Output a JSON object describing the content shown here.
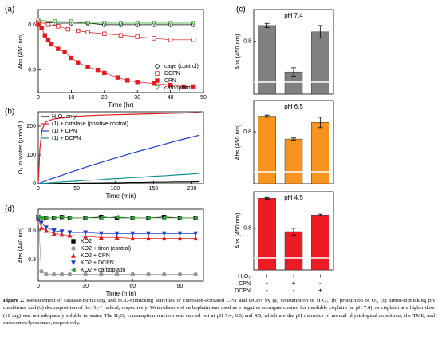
{
  "chart_data": [
    {
      "panel": "(a)",
      "type": "line",
      "lines": true,
      "xlabel": "Time (hr)",
      "ylabel": "Abs (450 nm)",
      "xlim": [
        0,
        50
      ],
      "xticks": [
        0,
        10,
        20,
        30,
        40,
        50
      ],
      "ylim": [
        0.15,
        0.7
      ],
      "yticks": [
        0.3,
        0.6
      ],
      "legend": "lower right",
      "series": [
        {
          "name": "cage (control)",
          "color": "#000000",
          "marker": "circle-open",
          "x": [
            0,
            5,
            10,
            15,
            20,
            25,
            30,
            35,
            40,
            47
          ],
          "values": [
            0.62,
            0.61,
            0.61,
            0.61,
            0.6,
            0.6,
            0.6,
            0.6,
            0.6,
            0.6
          ]
        },
        {
          "name": "DCPN",
          "color": "#e41a1c",
          "marker": "square-open",
          "x": [
            0,
            3,
            6,
            9,
            12,
            15,
            20,
            25,
            30,
            35,
            40,
            47
          ],
          "values": [
            0.62,
            0.6,
            0.59,
            0.57,
            0.56,
            0.55,
            0.54,
            0.53,
            0.52,
            0.51,
            0.5,
            0.5
          ]
        },
        {
          "name": "CPN",
          "color": "#e41a1c",
          "marker": "square",
          "x": [
            0,
            1,
            2,
            3,
            4,
            6,
            8,
            10,
            12,
            15,
            18,
            20,
            24,
            27,
            30,
            35,
            40,
            44,
            47
          ],
          "values": [
            0.6,
            0.58,
            0.53,
            0.5,
            0.47,
            0.44,
            0.42,
            0.38,
            0.35,
            0.32,
            0.3,
            0.28,
            0.25,
            0.23,
            0.22,
            0.21,
            0.2,
            0.19,
            0.19
          ]
        },
        {
          "name": "carboplatin",
          "color": "#2ca02c",
          "marker": "triangle-down-open",
          "x": [
            0,
            5,
            10,
            15,
            20,
            25,
            30,
            35,
            40,
            47
          ],
          "values": [
            0.63,
            0.62,
            0.62,
            0.61,
            0.61,
            0.61,
            0.61,
            0.61,
            0.61,
            0.61
          ]
        }
      ]
    },
    {
      "panel": "(b)",
      "type": "line",
      "lines": true,
      "xlabel": "Time (min)",
      "ylabel": "O₂ in water (μmol/L)",
      "xlim": [
        0,
        215
      ],
      "xticks": [
        0,
        50,
        100,
        150,
        200
      ],
      "ylim": [
        0,
        250
      ],
      "yticks": [
        0,
        100,
        200
      ],
      "legend": "upper left",
      "series": [
        {
          "name": "H₂O₂ only",
          "color": "#000000",
          "x": [
            0,
            15,
            30,
            45,
            60,
            75,
            90,
            105,
            120,
            135,
            150,
            165,
            180,
            195,
            210
          ],
          "values": [
            0,
            0,
            1,
            1,
            2,
            2,
            3,
            3,
            4,
            4,
            5,
            5,
            6,
            6,
            7
          ]
        },
        {
          "name": "(1) + catalase (positive control)",
          "color": "#e41a1c",
          "x": [
            0,
            2,
            5,
            10,
            20,
            40,
            60,
            90,
            120,
            150,
            180,
            210
          ],
          "values": [
            0,
            120,
            190,
            215,
            225,
            232,
            236,
            239,
            241,
            243,
            245,
            247
          ]
        },
        {
          "name": "(1) + CPN",
          "color": "#1f3cc8",
          "x": [
            0,
            15,
            30,
            45,
            60,
            75,
            90,
            105,
            120,
            135,
            150,
            165,
            180,
            195,
            210
          ],
          "values": [
            0,
            15,
            29,
            43,
            56,
            69,
            81,
            93,
            105,
            116,
            127,
            138,
            149,
            159,
            169
          ]
        },
        {
          "name": "(1) + DCPN",
          "color": "#1a8f8f",
          "x": [
            0,
            15,
            30,
            45,
            60,
            75,
            90,
            105,
            120,
            135,
            150,
            165,
            180,
            195,
            210
          ],
          "values": [
            0,
            3,
            6,
            8,
            11,
            13,
            16,
            18,
            21,
            23,
            26,
            28,
            31,
            33,
            36
          ]
        }
      ]
    },
    {
      "panel": "(d)",
      "type": "line",
      "lines": true,
      "xlabel": "Time (min)",
      "ylabel": "Abs (440 nm)",
      "xlim": [
        0,
        105
      ],
      "xticks": [
        0,
        30,
        60,
        90
      ],
      "ylim": [
        0.08,
        0.82
      ],
      "yticks": [
        0.3,
        0.6
      ],
      "legend": "lower left",
      "series": [
        {
          "name": "KO2",
          "color": "#000000",
          "marker": "square",
          "x": [
            0,
            5,
            10,
            15,
            20,
            30,
            40,
            50,
            60,
            70,
            80,
            90,
            100
          ],
          "values": [
            0.74,
            0.73,
            0.73,
            0.74,
            0.73,
            0.73,
            0.74,
            0.73,
            0.73,
            0.73,
            0.74,
            0.73,
            0.73
          ]
        },
        {
          "name": "KO2 + tiron (control)",
          "color": "#999999",
          "marker": "circle",
          "x": [
            0,
            2,
            5,
            10,
            15,
            20,
            30,
            40,
            50,
            60,
            70,
            80,
            90,
            100
          ],
          "values": [
            0.74,
            0.18,
            0.15,
            0.15,
            0.15,
            0.15,
            0.15,
            0.15,
            0.15,
            0.15,
            0.15,
            0.15,
            0.15,
            0.15
          ]
        },
        {
          "name": "KO2 + CPN",
          "color": "#e41a1c",
          "marker": "triangle",
          "x": [
            0,
            2,
            5,
            10,
            15,
            20,
            30,
            40,
            50,
            60,
            70,
            80,
            90,
            100
          ],
          "values": [
            0.72,
            0.63,
            0.6,
            0.57,
            0.56,
            0.55,
            0.54,
            0.53,
            0.53,
            0.52,
            0.52,
            0.52,
            0.52,
            0.52
          ]
        },
        {
          "name": "KO2 + DCPN",
          "color": "#1f3cc8",
          "marker": "triangle-down",
          "x": [
            0,
            2,
            5,
            10,
            15,
            20,
            30,
            40,
            50,
            60,
            70,
            80,
            90,
            100
          ],
          "values": [
            0.72,
            0.68,
            0.63,
            0.6,
            0.59,
            0.58,
            0.58,
            0.57,
            0.57,
            0.57,
            0.57,
            0.57,
            0.57,
            0.57
          ]
        },
        {
          "name": "KO2 + carboplatin",
          "color": "#2ca02c",
          "marker": "triangle-left",
          "x": [
            0,
            2,
            5,
            10,
            15,
            20,
            30,
            40,
            50,
            60,
            70,
            80,
            90,
            100
          ],
          "values": [
            0.74,
            0.73,
            0.73,
            0.73,
            0.74,
            0.73,
            0.73,
            0.73,
            0.74,
            0.73,
            0.73,
            0.73,
            0.73,
            0.73
          ]
        }
      ]
    },
    {
      "panel": "(c)",
      "type": "bar",
      "title": "pH 7.4",
      "ylabel": "Abs (450 nm)",
      "color": "#808080",
      "categories": [
        null,
        null,
        null
      ],
      "values": [
        0.875,
        0.655,
        0.845
      ],
      "errors": [
        0.01,
        0.02,
        0.03
      ],
      "ylim": [
        0.55,
        0.95
      ],
      "yticks": [
        0.8
      ]
    },
    {
      "type": "bar",
      "title": "pH 6.5",
      "ylabel": "Abs (450 nm)",
      "color": "#f7941d",
      "categories": [
        null,
        null,
        null
      ],
      "values": [
        0.875,
        0.765,
        0.845
      ],
      "errors": [
        0.005,
        0.005,
        0.025
      ],
      "ylim": [
        0.55,
        0.95
      ],
      "yticks": [
        0.8
      ]
    },
    {
      "type": "bar",
      "title": "pH 4.5",
      "ylabel": "Abs (450 nm)",
      "color": "#ed1c24",
      "categories": [
        null,
        null,
        null
      ],
      "values": [
        0.98,
        0.78,
        0.88
      ],
      "errors": [
        0.005,
        0.02,
        0.005
      ],
      "ylim": [
        0.55,
        1.02
      ],
      "yticks": [
        0.8
      ]
    }
  ],
  "treatments": [
    {
      "label": "H₂O₂",
      "signs": [
        "+",
        "+",
        "+"
      ]
    },
    {
      "label": "CPN",
      "signs": [
        "-",
        "+",
        "-"
      ]
    },
    {
      "label": "DCPN",
      "signs": [
        "-",
        "-",
        "+"
      ]
    }
  ],
  "caption_label": "Figure 2.",
  "caption": "Measurement of catalase-mimicking and SOD-mimicking activities of corrosion-activated CPN and DCPN by (a) consumption of H₂O₂, (b) production of O₂, (c) tumor-mimicking pH conditions, and (d) decomposition of the O₂•⁻ radical, respectively. Water-dissolved carboplatin was used as a negative surrogate control for insoluble cisplatin (at pH 7.4), as cisplatin at a higher dose (10 mg) was not adequately soluble in water. The H₂O₂ consumption reaction was carried out at pH 7.4, 6.5, and 4.5, which are the pH mimetics of normal physiological conditions, the TME, and endosomes/lysosomes, respectively."
}
